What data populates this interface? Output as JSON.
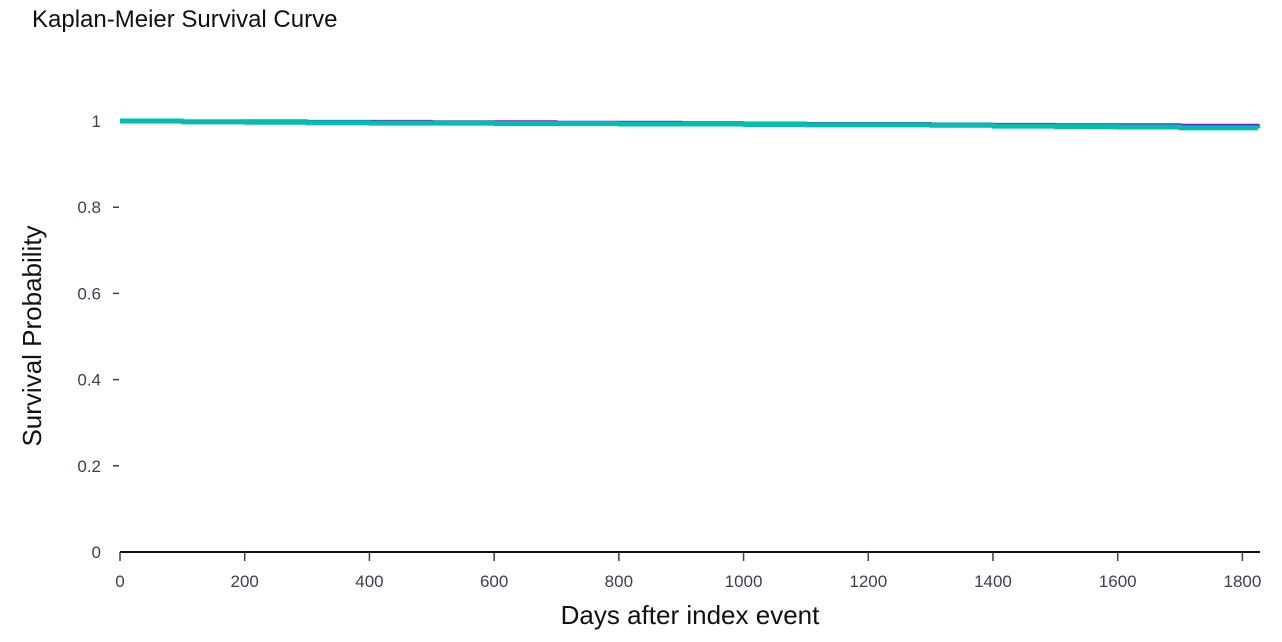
{
  "chart_data": {
    "type": "line",
    "title": "Kaplan-Meier Survival Curve",
    "xlabel": "Days after index event",
    "ylabel": "Survival Probability",
    "xlim": [
      0,
      1825
    ],
    "ylim": [
      0,
      1
    ],
    "x_ticks": [
      0,
      200,
      400,
      600,
      800,
      1000,
      1200,
      1400,
      1600,
      1800
    ],
    "y_ticks": [
      0,
      0.2,
      0.4,
      0.6,
      0.8,
      1
    ],
    "y_tick_labels": [
      "0",
      "0.2",
      "0.4",
      "0.6",
      "0.8",
      "1"
    ],
    "grid": false,
    "legend": "none",
    "series": [
      {
        "color": "#6a1fd6",
        "x": [
          0,
          100,
          200,
          300,
          400,
          500,
          600,
          700,
          800,
          900,
          1000,
          1100,
          1200,
          1300,
          1400,
          1500,
          1600,
          1700,
          1825
        ],
        "y": [
          1.0,
          0.999,
          0.999,
          0.998,
          0.998,
          0.997,
          0.997,
          0.996,
          0.996,
          0.995,
          0.994,
          0.993,
          0.993,
          0.992,
          0.991,
          0.99,
          0.99,
          0.989,
          0.988
        ]
      },
      {
        "color": "#00bfae",
        "x": [
          0,
          100,
          200,
          300,
          400,
          500,
          600,
          700,
          800,
          900,
          1000,
          1100,
          1200,
          1300,
          1400,
          1500,
          1600,
          1700,
          1825
        ],
        "y": [
          1.0,
          0.998,
          0.997,
          0.996,
          0.995,
          0.995,
          0.994,
          0.994,
          0.993,
          0.993,
          0.992,
          0.991,
          0.991,
          0.99,
          0.988,
          0.987,
          0.986,
          0.984,
          0.983
        ]
      }
    ]
  }
}
